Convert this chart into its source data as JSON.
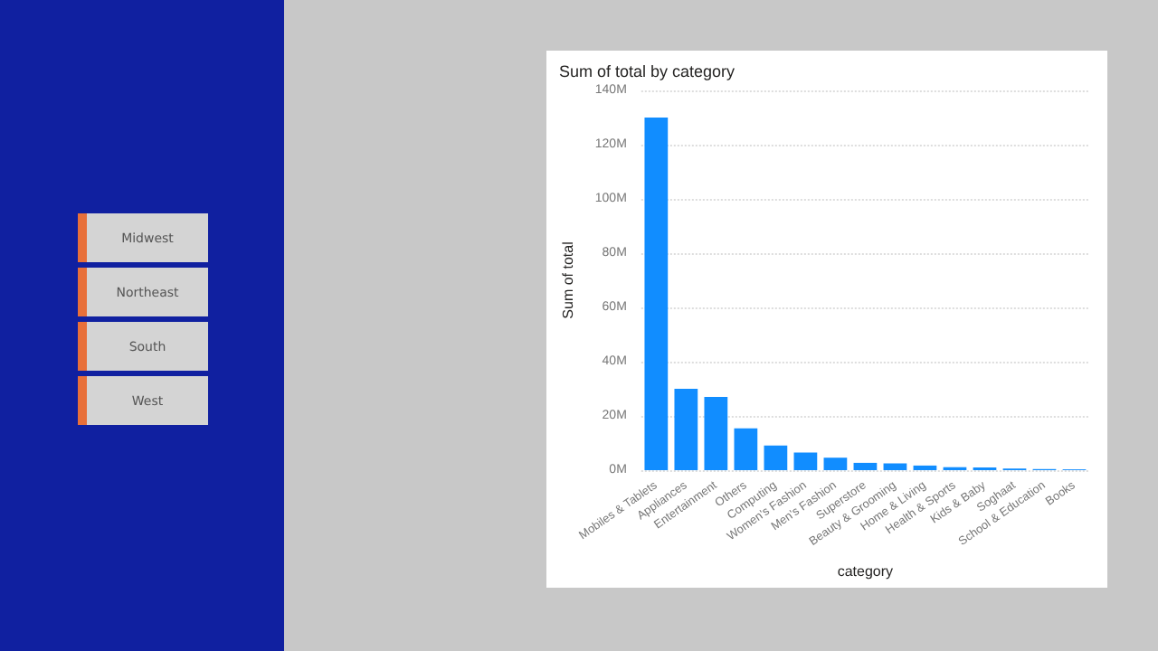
{
  "chart_data": [
    {
      "type": "other",
      "annotations": [
        "Midwest",
        "Northeast",
        "South",
        "West"
      ]
    },
    {
      "type": "bar",
      "title": "Sum of total by category",
      "xlabel": "category",
      "ylabel": "Sum of total",
      "categories": [
        "Mobiles & Tablets",
        "Appliances",
        "Entertainment",
        "Others",
        "Computing",
        "Women's Fashion",
        "Men's Fashion",
        "Superstore",
        "Beauty & Grooming",
        "Home & Living",
        "Health & Sports",
        "Kids & Baby",
        "Soghaat",
        "School & Education",
        "Books"
      ],
      "values": [
        130000000,
        30000000,
        27000000,
        15400000,
        9100000,
        6500000,
        4600000,
        2700000,
        2500000,
        1700000,
        1100000,
        1000000,
        600000,
        400000,
        300000
      ],
      "color": "#118dff",
      "ylim": [
        0,
        140000000
      ],
      "yticks": [
        {
          "value": 0,
          "label": "0M"
        },
        {
          "value": 20000000,
          "label": "20M"
        },
        {
          "value": 40000000,
          "label": "40M"
        },
        {
          "value": 60000000,
          "label": "60M"
        },
        {
          "value": 80000000,
          "label": "80M"
        },
        {
          "value": 100000000,
          "label": "100M"
        },
        {
          "value": 120000000,
          "label": "120M"
        },
        {
          "value": 140000000,
          "label": "140M"
        }
      ],
      "grid": "y"
    }
  ]
}
